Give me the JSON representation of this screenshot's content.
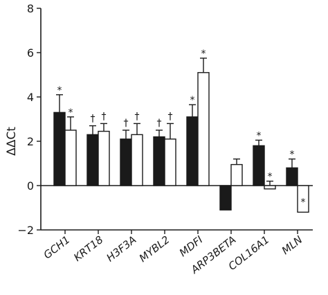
{
  "chart_data": {
    "type": "bar",
    "ylabel": "ΔΔCt",
    "xlabel": "",
    "ylim": [
      -2,
      8
    ],
    "yticks": [
      -2,
      0,
      2,
      4,
      6,
      8
    ],
    "grid": false,
    "categories": [
      "GCH1",
      "KRT18",
      "H3F3A",
      "MYBL2",
      "MDFI",
      "ARP3BETA",
      "COL16A1",
      "MLN"
    ],
    "series": [
      {
        "color": "#1a1a1a",
        "fill": "#1a1a1a",
        "values": [
          3.3,
          2.3,
          2.1,
          2.2,
          3.1,
          -1.1,
          1.8,
          0.8
        ],
        "error_end": [
          4.1,
          2.7,
          2.5,
          2.5,
          3.65,
          null,
          2.05,
          1.2
        ],
        "markers": [
          "*",
          "†",
          "†",
          "†",
          "*",
          "",
          "*",
          "*"
        ]
      },
      {
        "color": "#1a1a1a",
        "fill": "#ffffff",
        "values": [
          2.5,
          2.45,
          2.3,
          2.1,
          5.1,
          0.95,
          -0.15,
          -1.2
        ],
        "error_end": [
          3.1,
          2.8,
          2.8,
          2.8,
          5.75,
          1.2,
          0.2,
          -0.95
        ],
        "markers": [
          "*",
          "†",
          "†",
          "†",
          "*",
          "",
          "*",
          "*"
        ]
      }
    ]
  }
}
